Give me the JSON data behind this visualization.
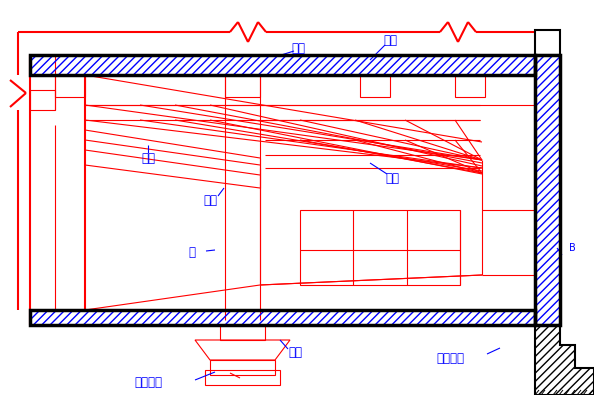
{
  "bg_color": "#ffffff",
  "red": "#FF0000",
  "blue": "#0000FF",
  "black": "#000000",
  "labels": {
    "zhujia1": "主梁",
    "zhujia2": "主梁",
    "cijia1": "次梁",
    "cijia2": "次梁",
    "loban": "楼板",
    "zhu": "柱",
    "dimian": "地面",
    "dulijijiao": "独立基础",
    "tiaoxingjijiao": "条形基础",
    "B": "B"
  }
}
